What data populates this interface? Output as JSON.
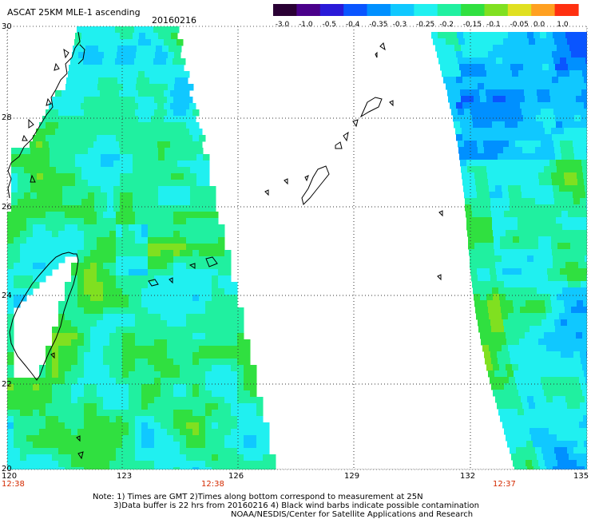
{
  "header": {
    "title": "ASCAT 25KM MLE-1 ascending",
    "date": "20160216"
  },
  "colorbar": {
    "labels": [
      "-3.0",
      "-1.0",
      "-0.5",
      "-0.4",
      "-0.35",
      "-0.3",
      "-0.25",
      "-0.2",
      "-0.15",
      "-0.1",
      "-0.05",
      "0.0",
      "1.0"
    ],
    "colors": [
      "#2a0034",
      "#4a008a",
      "#2a1ad8",
      "#0a55ff",
      "#0090ff",
      "#10c8ff",
      "#20f0f0",
      "#20f0a0",
      "#30e040",
      "#80e020",
      "#e0e020",
      "#ffa020",
      "#ff3010"
    ]
  },
  "axes": {
    "lon_ticks": [
      "120",
      "123",
      "126",
      "129",
      "132",
      "135"
    ],
    "lat_ticks": [
      "30",
      "28",
      "26",
      "24",
      "22",
      "20"
    ]
  },
  "swath_times": [
    "12:38",
    "12:38",
    "12:37"
  ],
  "notes": [
    "Note: 1) Times are GMT 2)Times along bottom correspond to measurement at 25N",
    "3)Data buffer is 22 hrs from 20160216 4) Black wind barbs indicate possible contamination",
    "NOAA/NESDIS/Center for Satellite Applications and Research"
  ]
}
